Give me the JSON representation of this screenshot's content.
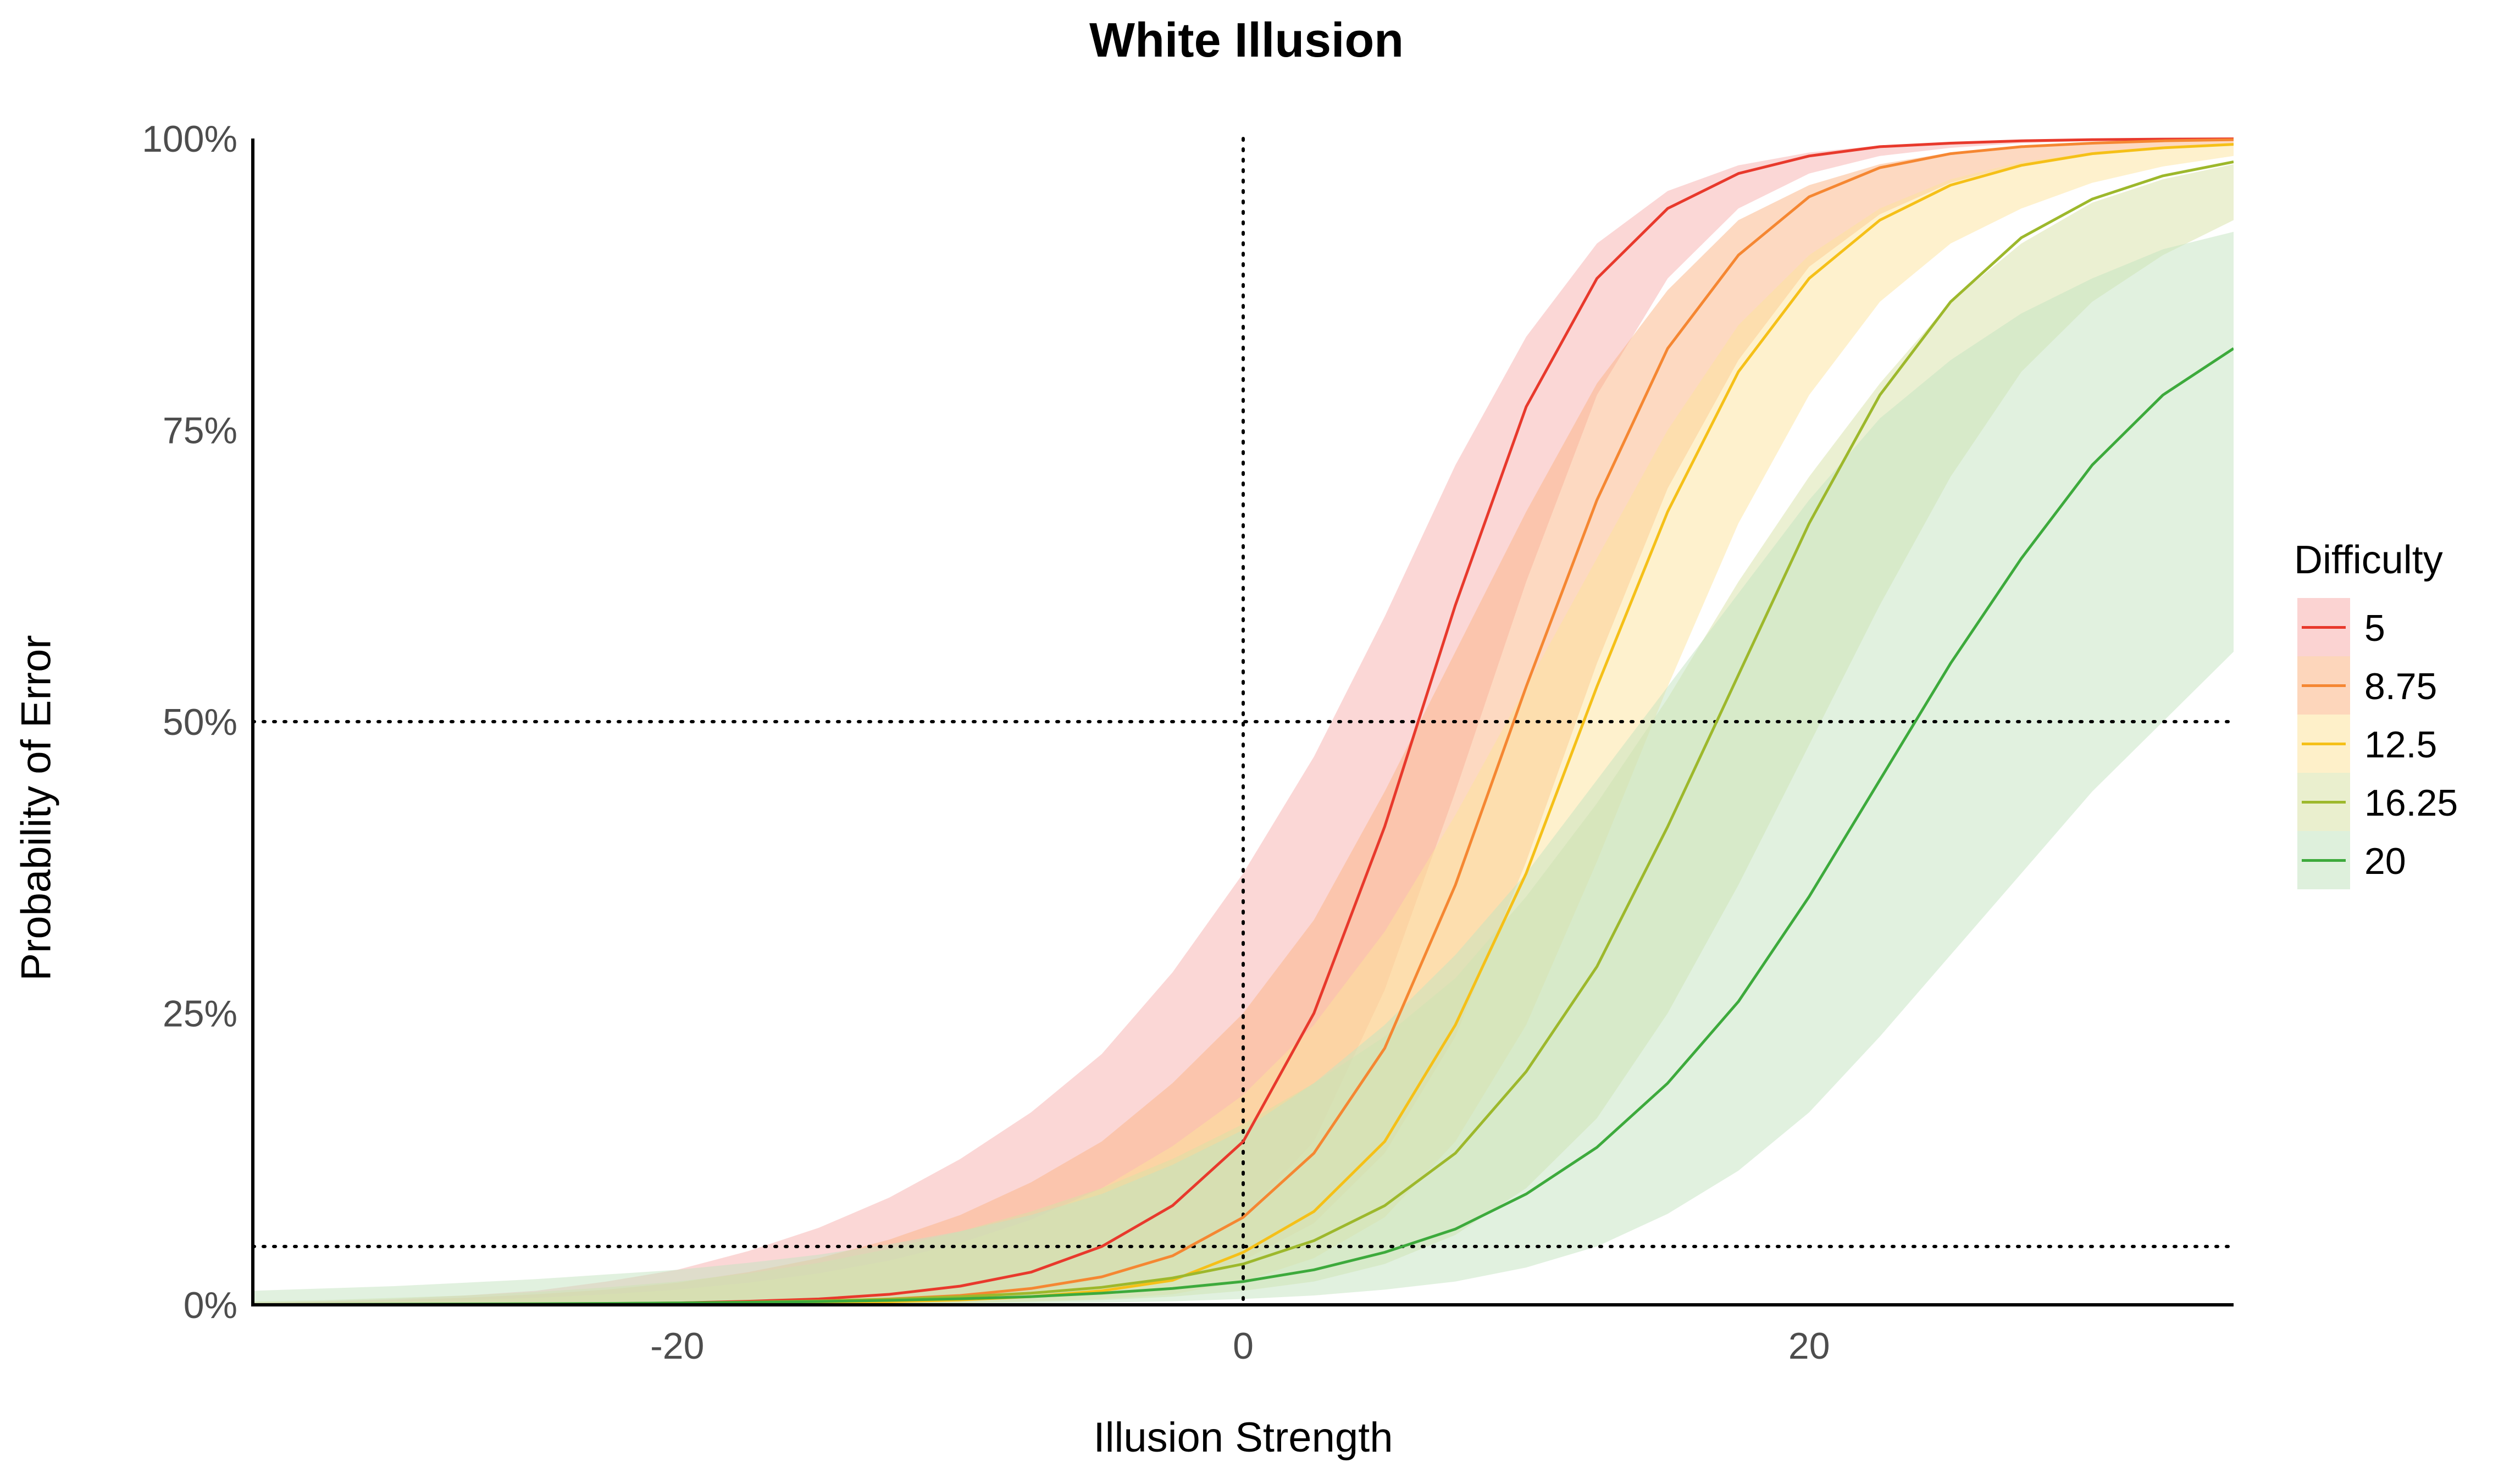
{
  "chart_data": {
    "type": "line",
    "title": "White Illusion",
    "xlabel": "Illusion Strength",
    "ylabel": "Probability of Error",
    "xlim": [
      -35,
      35
    ],
    "ylim": [
      0,
      1
    ],
    "x_ticks": [
      -20,
      0,
      20
    ],
    "x_tick_labels": [
      "-20",
      "0",
      "20"
    ],
    "y_ticks": [
      0,
      0.25,
      0.5,
      0.75,
      1
    ],
    "y_tick_labels": [
      "0%",
      "25%",
      "50%",
      "75%",
      "100%"
    ],
    "reference_lines": {
      "horizontal": [
        0.05,
        0.5
      ],
      "vertical": [
        0
      ],
      "style": "dotted"
    },
    "grid": false,
    "legend": {
      "title": "Difficulty",
      "position": "right"
    },
    "x": [
      -35,
      -32.5,
      -30,
      -27.5,
      -25,
      -22.5,
      -20,
      -17.5,
      -15,
      -12.5,
      -10,
      -7.5,
      -5,
      -2.5,
      0,
      2.5,
      5,
      7.5,
      10,
      12.5,
      15,
      17.5,
      20,
      22.5,
      25,
      27.5,
      30,
      32.5,
      35
    ],
    "series": [
      {
        "name": "5",
        "color": "#E8392C",
        "band_color": "#F7AFAD",
        "values": [
          0.0001,
          0.0001,
          0.0002,
          0.0003,
          0.0005,
          0.0009,
          0.0016,
          0.003,
          0.005,
          0.009,
          0.016,
          0.028,
          0.05,
          0.085,
          0.14,
          0.25,
          0.41,
          0.6,
          0.77,
          0.88,
          0.94,
          0.97,
          0.985,
          0.993,
          0.996,
          0.998,
          0.999,
          0.9995,
          0.9997
        ],
        "lower": [
          0,
          0,
          0.0001,
          0.0001,
          0.0002,
          0.0003,
          0.0005,
          0.0009,
          0.0016,
          0.003,
          0.006,
          0.011,
          0.022,
          0.042,
          0.075,
          0.14,
          0.27,
          0.44,
          0.62,
          0.78,
          0.88,
          0.94,
          0.97,
          0.985,
          0.992,
          0.996,
          0.998,
          0.999,
          0.9995
        ],
        "upper": [
          0.002,
          0.003,
          0.005,
          0.008,
          0.012,
          0.02,
          0.03,
          0.046,
          0.066,
          0.092,
          0.125,
          0.165,
          0.215,
          0.285,
          0.37,
          0.47,
          0.59,
          0.72,
          0.83,
          0.91,
          0.955,
          0.977,
          0.988,
          0.994,
          0.997,
          0.998,
          0.999,
          0.9995,
          0.9998
        ]
      },
      {
        "name": "8.75",
        "color": "#F58732",
        "band_color": "#FBB483",
        "values": [
          0.0001,
          0.0001,
          0.0002,
          0.0003,
          0.0004,
          0.0007,
          0.0011,
          0.0018,
          0.003,
          0.005,
          0.008,
          0.014,
          0.024,
          0.042,
          0.075,
          0.13,
          0.22,
          0.36,
          0.53,
          0.69,
          0.82,
          0.9,
          0.95,
          0.975,
          0.987,
          0.993,
          0.996,
          0.998,
          0.999
        ],
        "lower": [
          0,
          0,
          0.0001,
          0.0001,
          0.0002,
          0.0002,
          0.0004,
          0.0006,
          0.001,
          0.0018,
          0.003,
          0.006,
          0.011,
          0.02,
          0.038,
          0.07,
          0.13,
          0.23,
          0.38,
          0.55,
          0.7,
          0.81,
          0.89,
          0.935,
          0.962,
          0.978,
          0.987,
          0.992,
          0.995
        ],
        "upper": [
          0.002,
          0.003,
          0.004,
          0.006,
          0.009,
          0.013,
          0.019,
          0.028,
          0.04,
          0.056,
          0.077,
          0.105,
          0.14,
          0.19,
          0.25,
          0.33,
          0.44,
          0.56,
          0.68,
          0.79,
          0.87,
          0.93,
          0.96,
          0.978,
          0.988,
          0.993,
          0.996,
          0.998,
          0.999
        ]
      },
      {
        "name": "12.5",
        "color": "#F5C018",
        "band_color": "#FDE39C",
        "values": [
          0.0001,
          0.0001,
          0.0001,
          0.0002,
          0.0003,
          0.0004,
          0.0006,
          0.001,
          0.0016,
          0.0026,
          0.0042,
          0.007,
          0.012,
          0.021,
          0.045,
          0.08,
          0.14,
          0.24,
          0.37,
          0.53,
          0.68,
          0.8,
          0.88,
          0.93,
          0.96,
          0.977,
          0.987,
          0.992,
          0.995
        ],
        "lower": [
          0,
          0,
          0,
          0.0001,
          0.0001,
          0.0001,
          0.0002,
          0.0003,
          0.0005,
          0.0009,
          0.0016,
          0.003,
          0.005,
          0.009,
          0.02,
          0.04,
          0.075,
          0.14,
          0.24,
          0.38,
          0.53,
          0.67,
          0.78,
          0.86,
          0.91,
          0.94,
          0.962,
          0.976,
          0.985
        ],
        "upper": [
          0.0015,
          0.002,
          0.003,
          0.004,
          0.006,
          0.009,
          0.013,
          0.019,
          0.027,
          0.038,
          0.053,
          0.073,
          0.1,
          0.136,
          0.18,
          0.24,
          0.32,
          0.42,
          0.53,
          0.64,
          0.75,
          0.84,
          0.9,
          0.94,
          0.965,
          0.98,
          0.988,
          0.993,
          0.996
        ]
      },
      {
        "name": "16.25",
        "color": "#9DB82C",
        "band_color": "#D8E2A6",
        "values": [
          0.0002,
          0.0003,
          0.0004,
          0.0006,
          0.0008,
          0.0011,
          0.0016,
          0.0023,
          0.0033,
          0.0048,
          0.007,
          0.01,
          0.015,
          0.023,
          0.035,
          0.055,
          0.085,
          0.13,
          0.2,
          0.29,
          0.41,
          0.54,
          0.67,
          0.78,
          0.86,
          0.915,
          0.948,
          0.968,
          0.98
        ],
        "lower": [
          0,
          0,
          0.0001,
          0.0001,
          0.0001,
          0.0002,
          0.0003,
          0.0004,
          0.0006,
          0.001,
          0.0016,
          0.0026,
          0.004,
          0.007,
          0.012,
          0.02,
          0.035,
          0.06,
          0.1,
          0.16,
          0.25,
          0.36,
          0.48,
          0.6,
          0.71,
          0.8,
          0.86,
          0.9,
          0.93
        ],
        "upper": [
          0.003,
          0.004,
          0.006,
          0.008,
          0.011,
          0.015,
          0.02,
          0.027,
          0.036,
          0.048,
          0.063,
          0.08,
          0.1,
          0.125,
          0.155,
          0.19,
          0.23,
          0.28,
          0.35,
          0.43,
          0.52,
          0.62,
          0.71,
          0.79,
          0.86,
          0.91,
          0.945,
          0.965,
          0.978
        ]
      },
      {
        "name": "20",
        "color": "#3DAA3C",
        "band_color": "#C3E3C0",
        "values": [
          0.0003,
          0.0004,
          0.0005,
          0.0007,
          0.0009,
          0.0012,
          0.0016,
          0.0021,
          0.0028,
          0.0038,
          0.0052,
          0.007,
          0.01,
          0.014,
          0.02,
          0.03,
          0.045,
          0.065,
          0.095,
          0.135,
          0.19,
          0.26,
          0.35,
          0.45,
          0.55,
          0.64,
          0.72,
          0.78,
          0.82
        ],
        "lower": [
          0,
          0.0001,
          0.0001,
          0.0001,
          0.0002,
          0.0002,
          0.0003,
          0.0004,
          0.0005,
          0.0007,
          0.001,
          0.0014,
          0.002,
          0.003,
          0.005,
          0.008,
          0.013,
          0.02,
          0.032,
          0.05,
          0.078,
          0.115,
          0.165,
          0.23,
          0.3,
          0.37,
          0.44,
          0.5,
          0.56
        ],
        "upper": [
          0.012,
          0.014,
          0.016,
          0.019,
          0.022,
          0.026,
          0.03,
          0.036,
          0.043,
          0.052,
          0.063,
          0.077,
          0.095,
          0.12,
          0.15,
          0.19,
          0.24,
          0.3,
          0.37,
          0.45,
          0.53,
          0.61,
          0.69,
          0.76,
          0.81,
          0.85,
          0.88,
          0.905,
          0.92
        ]
      }
    ]
  }
}
